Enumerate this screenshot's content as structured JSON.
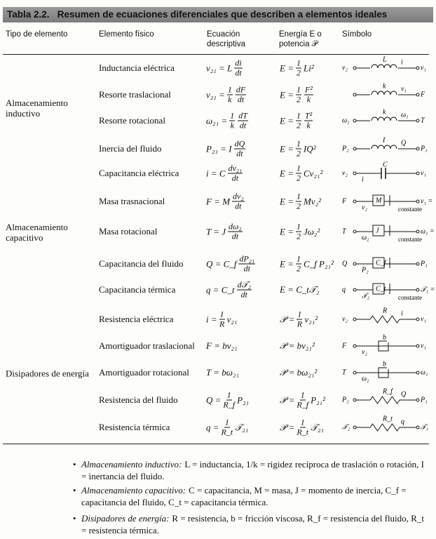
{
  "title": "Tabla 2.2.   Resumen de ecuaciones diferenciales que describen a elementos ideales",
  "headers": [
    "Tipo de elemento",
    "Elemento físico",
    "Ecuación descriptiva",
    "Energía E o potencia 𝒫",
    "Símbolo"
  ],
  "groups": [
    {
      "label": "Almacenamiento inductivo",
      "rows": [
        {
          "element": "Inductancia eléctrica",
          "equation": [
            "v₂₁ = L",
            {
              "n": "di",
              "d": "dt"
            }
          ],
          "energy": [
            "E =",
            {
              "n": "1",
              "d": "2"
            },
            "Li²"
          ],
          "symbol": {
            "left": "v₂",
            "top": "L",
            "sub": "i",
            "right": "v₁"
          }
        },
        {
          "element": "Resorte traslacional",
          "equation": [
            "v₂₁ =",
            {
              "n": "1",
              "d": "k"
            },
            {
              "n": "dF",
              "d": "dt"
            }
          ],
          "energy": [
            "E =",
            {
              "n": "1",
              "d": "2"
            },
            {
              "n": "F²",
              "d": "k"
            }
          ],
          "symbol": {
            "top": "k",
            "sub": "v₁",
            "right": "F"
          }
        },
        {
          "element": "Resorte rotacional",
          "equation": [
            "ω₂₁ =",
            {
              "n": "1",
              "d": "k"
            },
            {
              "n": "dT",
              "d": "dt"
            }
          ],
          "energy": [
            "E =",
            {
              "n": "1",
              "d": "2"
            },
            {
              "n": "T²",
              "d": "k"
            }
          ],
          "symbol": {
            "left": "ω₂",
            "top": "k",
            "sub": "ω₁",
            "right": "T"
          }
        },
        {
          "element": "Inercia del fluido",
          "equation": [
            "P₂₁ = I",
            {
              "n": "dQ",
              "d": "dt"
            }
          ],
          "energy": [
            "E =",
            {
              "n": "1",
              "d": "2"
            },
            "IQ²"
          ],
          "symbol": {
            "left": "P₂",
            "top": "I",
            "sub": "Q",
            "right": "P₁"
          }
        }
      ]
    },
    {
      "label": "Almacenamiento capacitivo",
      "rows": [
        {
          "element": "Capacitancia eléctrica",
          "equation": [
            "i = C",
            {
              "n": "dv₂₁",
              "d": "dt"
            }
          ],
          "energy": [
            "E =",
            {
              "n": "1",
              "d": "2"
            },
            "Cv₂₁²"
          ],
          "symbol": {
            "left": "v₂",
            "sub": "i",
            "top": "C",
            "right": "v₁"
          }
        },
        {
          "element": "Masa trasnacional",
          "equation": [
            "F = M",
            {
              "n": "dv₂",
              "d": "dt"
            }
          ],
          "energy": [
            "E =",
            {
              "n": "1",
              "d": "2"
            },
            "Mv₂²"
          ],
          "symbol": {
            "left": "F",
            "sub": "v₂",
            "top": "M",
            "right": "v₁ =",
            "note": "constante"
          }
        },
        {
          "element": "Masa rotacional",
          "equation": [
            "T = J",
            {
              "n": "dω₂",
              "d": "dt"
            }
          ],
          "energy": [
            "E =",
            {
              "n": "1",
              "d": "2"
            },
            "Jω₂²"
          ],
          "symbol": {
            "left": "T",
            "sub": "ω₂",
            "top": "J",
            "right": "ω₁ =",
            "note": "constante"
          }
        },
        {
          "element": "Capacitancia del fluido",
          "equation": [
            "Q = C_f",
            {
              "n": "dP₂₁",
              "d": "dt"
            }
          ],
          "energy": [
            "E =",
            {
              "n": "1",
              "d": "2"
            },
            "C_f P₂₁²"
          ],
          "symbol": {
            "left": "Q",
            "sub": "P₂",
            "top": "C_f",
            "right": "P₁"
          }
        },
        {
          "element": "Capacitancia térmica",
          "equation": [
            "q = C_t",
            {
              "n": "d𝒯₂",
              "d": "dt"
            }
          ],
          "energy": [
            "E = C_t𝒯₂"
          ],
          "symbol": {
            "left": "q",
            "sub": "𝒯₂",
            "top": "C_t",
            "right": "𝒯₁ =",
            "note": "constante"
          }
        }
      ]
    },
    {
      "label": "Disipadores de energía",
      "rows": [
        {
          "element": "Resistencia eléctrica",
          "equation": [
            "i =",
            {
              "n": "1",
              "d": "R"
            },
            "v₂₁"
          ],
          "energy": [
            "𝒫 =",
            {
              "n": "1",
              "d": "R"
            },
            "v₂₁²"
          ],
          "symbol": {
            "left": "v₂",
            "top": "R",
            "sub": "i",
            "right": "v₁"
          }
        },
        {
          "element": "Amortiguador traslacional",
          "equation": [
            "F = bv₂₁"
          ],
          "energy": [
            "𝒫 = bv₂₁²"
          ],
          "symbol": {
            "left": "F",
            "sub": "v₂",
            "top": "b",
            "right": "v₁"
          }
        },
        {
          "element": "Amortiguador rotacional",
          "equation": [
            "T = bω₂₁"
          ],
          "energy": [
            "𝒫 = bω₂₁²"
          ],
          "symbol": {
            "left": "T",
            "sub": "ω₂",
            "top": "b",
            "right": "ω₁"
          }
        },
        {
          "element": "Resistencia del fluido",
          "equation": [
            "Q =",
            {
              "n": "1",
              "d": "R_f"
            },
            "P₂₁"
          ],
          "energy": [
            "𝒫 =",
            {
              "n": "1",
              "d": "R_f"
            },
            "P₂₁²"
          ],
          "symbol": {
            "left": "P₂",
            "top": "R_f",
            "sub": "Q",
            "right": "P₁"
          }
        },
        {
          "element": "Resistencia térmica",
          "equation": [
            "q =",
            {
              "n": "1",
              "d": "R_t"
            },
            "𝒯₂₁"
          ],
          "energy": [
            "𝒫 =",
            {
              "n": "1",
              "d": "R_t"
            },
            "𝒯₂₁"
          ],
          "symbol": {
            "left": "𝒯₂",
            "top": "R_t",
            "sub": "q",
            "right": "𝒯₁"
          }
        }
      ]
    }
  ],
  "notes": [
    {
      "lead": "Almacenamiento inductivo:",
      "text": "L = inductancia, 1/k = rigidez recíproca de traslación o rotación, I = inertancia del fluido."
    },
    {
      "lead": "Almacenamiento capacitivo:",
      "text": "C = capacitancia, M = masa, J = momento de inercia, C_f = capacitancia del fluido, C_t = capacitancia térmica."
    },
    {
      "lead": "Disipadores de energía:",
      "text": "R = resistencia, b = fricción viscosa, R_f = resistencia del fluido, R_t = resistencia térmica."
    }
  ]
}
